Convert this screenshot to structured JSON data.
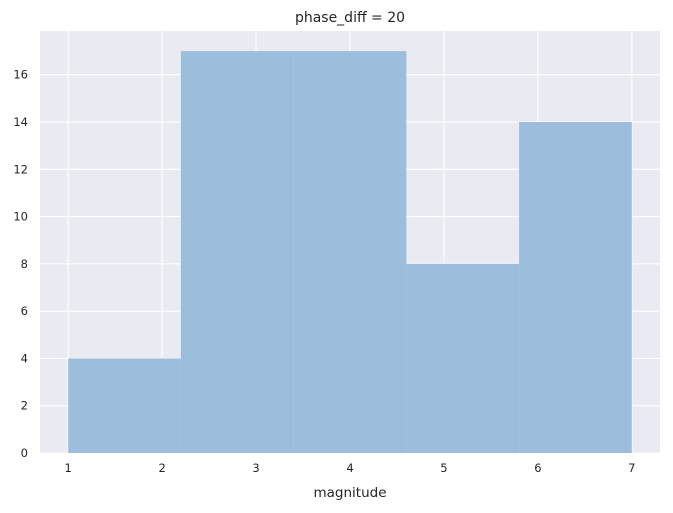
{
  "chart_data": {
    "type": "bar",
    "title": "phase_diff = 20",
    "xlabel": "magnitude",
    "ylabel": "",
    "bins": [
      {
        "x0": 1.0,
        "x1": 2.2,
        "value": 4
      },
      {
        "x0": 2.2,
        "x1": 3.4,
        "value": 17
      },
      {
        "x0": 3.4,
        "x1": 4.6,
        "value": 17
      },
      {
        "x0": 4.6,
        "x1": 5.8,
        "value": 8
      },
      {
        "x0": 5.8,
        "x1": 7.0,
        "value": 14
      }
    ],
    "xticks": [
      1,
      2,
      3,
      4,
      5,
      6,
      7
    ],
    "yticks": [
      0,
      2,
      4,
      6,
      8,
      10,
      12,
      14,
      16
    ],
    "xlim": [
      0.7,
      7.3
    ],
    "ylim": [
      0,
      17.85
    ],
    "grid": true,
    "colors": {
      "bar": "#99bcdb",
      "background": "#eaeaf2",
      "grid": "#ffffff",
      "text": "#262626"
    }
  }
}
